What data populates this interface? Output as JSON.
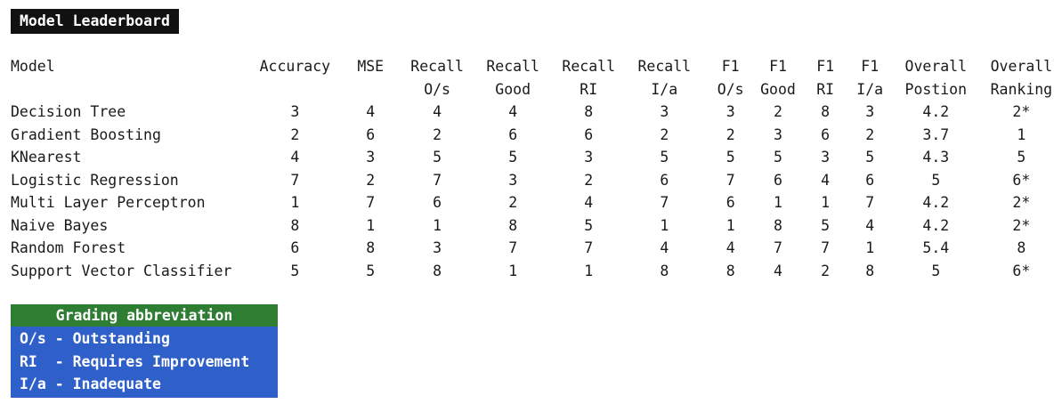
{
  "title": "Model Leaderboard",
  "columns": [
    {
      "key": "model",
      "line1": "Model",
      "line2": ""
    },
    {
      "key": "accuracy",
      "line1": "Accuracy",
      "line2": ""
    },
    {
      "key": "mse",
      "line1": "MSE",
      "line2": ""
    },
    {
      "key": "recall_os",
      "line1": "Recall",
      "line2": "O/s"
    },
    {
      "key": "recall_good",
      "line1": "Recall",
      "line2": "Good"
    },
    {
      "key": "recall_ri",
      "line1": "Recall",
      "line2": "RI"
    },
    {
      "key": "recall_ia",
      "line1": "Recall",
      "line2": "I/a"
    },
    {
      "key": "f1_os",
      "line1": "F1",
      "line2": "O/s"
    },
    {
      "key": "f1_good",
      "line1": "F1",
      "line2": "Good"
    },
    {
      "key": "f1_ri",
      "line1": "F1",
      "line2": "RI"
    },
    {
      "key": "f1_ia",
      "line1": "F1",
      "line2": "I/a"
    },
    {
      "key": "overall_position",
      "line1": "Overall",
      "line2": "Postion"
    },
    {
      "key": "overall_ranking",
      "line1": "Overall",
      "line2": "Ranking"
    }
  ],
  "rows": [
    [
      "Decision Tree",
      "3",
      "4",
      "4",
      "4",
      "8",
      "3",
      "3",
      "2",
      "8",
      "3",
      "4.2",
      "2*"
    ],
    [
      "Gradient Boosting",
      "2",
      "6",
      "2",
      "6",
      "6",
      "2",
      "2",
      "3",
      "6",
      "2",
      "3.7",
      "1"
    ],
    [
      "KNearest",
      "4",
      "3",
      "5",
      "5",
      "3",
      "5",
      "5",
      "5",
      "3",
      "5",
      "4.3",
      "5"
    ],
    [
      "Logistic Regression",
      "7",
      "2",
      "7",
      "3",
      "2",
      "6",
      "7",
      "6",
      "4",
      "6",
      "5",
      "6*"
    ],
    [
      "Multi Layer Perceptron",
      "1",
      "7",
      "6",
      "2",
      "4",
      "7",
      "6",
      "1",
      "1",
      "7",
      "4.2",
      "2*"
    ],
    [
      "Naive Bayes",
      "8",
      "1",
      "1",
      "8",
      "5",
      "1",
      "1",
      "8",
      "5",
      "4",
      "4.2",
      "2*"
    ],
    [
      "Random Forest",
      "6",
      "8",
      "3",
      "7",
      "7",
      "4",
      "4",
      "7",
      "7",
      "1",
      "5.4",
      "8"
    ],
    [
      "Support Vector Classifier",
      "5",
      "5",
      "8",
      "1",
      "1",
      "8",
      "8",
      "4",
      "2",
      "8",
      "5",
      "6*"
    ]
  ],
  "legend": {
    "title": "Grading abbreviation",
    "items": [
      "O/s - Outstanding",
      "RI  - Requires Improvement",
      "I/a - Inadequate"
    ],
    "header_color": "#2e7d32",
    "body_color": "#2f5fc9"
  }
}
